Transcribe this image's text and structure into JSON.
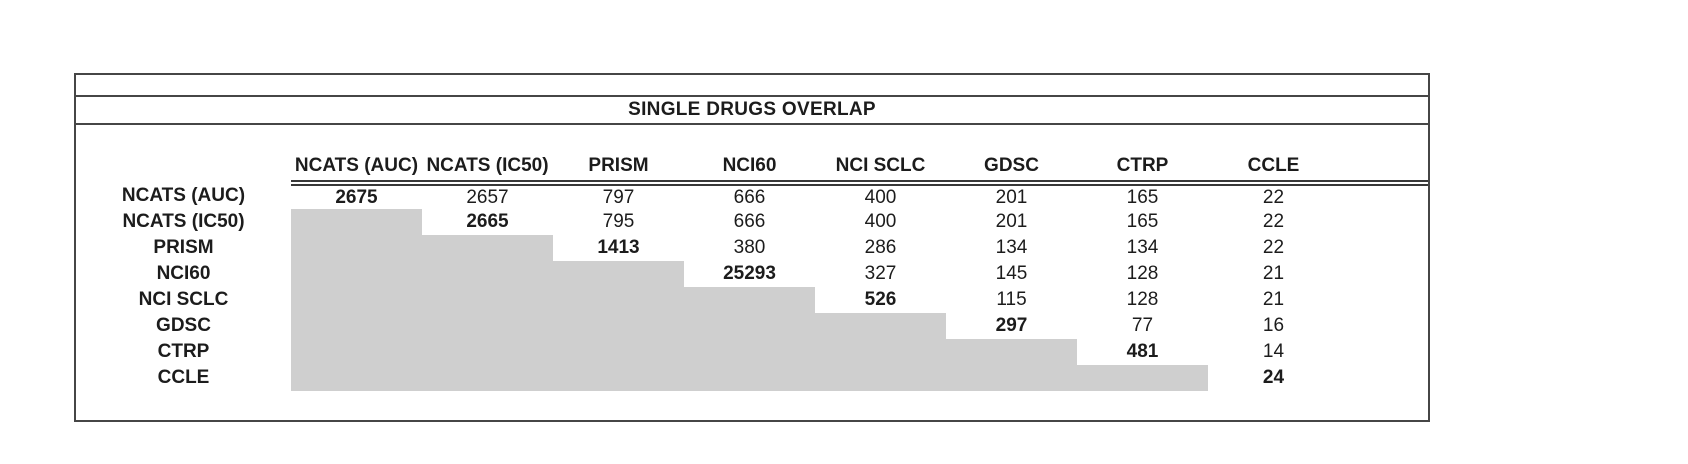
{
  "title": "SINGLE DRUGS OVERLAP",
  "colors": {
    "shaded_cell": "#cfcfcf",
    "panel_border": "#464646",
    "text": "#1c1c1c",
    "background": "#ffffff"
  },
  "matrix": {
    "columns": [
      "NCATS (AUC)",
      "NCATS (IC50)",
      "PRISM",
      "NCI60",
      "NCI SCLC",
      "GDSC",
      "CTRP",
      "CCLE"
    ],
    "rows": [
      {
        "label": "NCATS (AUC)",
        "cells": [
          "2675",
          "2657",
          "797",
          "666",
          "400",
          "201",
          "165",
          "22"
        ]
      },
      {
        "label": "NCATS (IC50)",
        "cells": [
          "",
          "2665",
          "795",
          "666",
          "400",
          "201",
          "165",
          "22"
        ]
      },
      {
        "label": "PRISM",
        "cells": [
          "",
          "",
          "1413",
          "380",
          "286",
          "134",
          "134",
          "22"
        ]
      },
      {
        "label": "NCI60",
        "cells": [
          "",
          "",
          "",
          "25293",
          "327",
          "145",
          "128",
          "21"
        ]
      },
      {
        "label": "NCI SCLC",
        "cells": [
          "",
          "",
          "",
          "",
          "526",
          "115",
          "128",
          "21"
        ]
      },
      {
        "label": "GDSC",
        "cells": [
          "",
          "",
          "",
          "",
          "",
          "297",
          "77",
          "16"
        ]
      },
      {
        "label": "CTRP",
        "cells": [
          "",
          "",
          "",
          "",
          "",
          "",
          "481",
          "14"
        ]
      },
      {
        "label": "CCLE",
        "cells": [
          "",
          "",
          "",
          "",
          "",
          "",
          "",
          "24"
        ]
      }
    ]
  },
  "chart_data": {
    "type": "table",
    "title": "SINGLE DRUGS OVERLAP",
    "row_labels": [
      "NCATS (AUC)",
      "NCATS (IC50)",
      "PRISM",
      "NCI60",
      "NCI SCLC",
      "GDSC",
      "CTRP",
      "CCLE"
    ],
    "col_labels": [
      "NCATS (AUC)",
      "NCATS (IC50)",
      "PRISM",
      "NCI60",
      "NCI SCLC",
      "GDSC",
      "CTRP",
      "CCLE"
    ],
    "matrix": [
      [
        2675,
        2657,
        797,
        666,
        400,
        201,
        165,
        22
      ],
      [
        null,
        2665,
        795,
        666,
        400,
        201,
        165,
        22
      ],
      [
        null,
        null,
        1413,
        380,
        286,
        134,
        134,
        22
      ],
      [
        null,
        null,
        null,
        25293,
        327,
        145,
        128,
        21
      ],
      [
        null,
        null,
        null,
        null,
        526,
        115,
        128,
        21
      ],
      [
        null,
        null,
        null,
        null,
        null,
        297,
        77,
        16
      ],
      [
        null,
        null,
        null,
        null,
        null,
        null,
        481,
        14
      ],
      [
        null,
        null,
        null,
        null,
        null,
        null,
        null,
        24
      ]
    ],
    "diagonal_bold": true,
    "lower_triangle_shaded": true,
    "shade_color": "#cfcfcf",
    "legend_position": "none",
    "grid": false
  }
}
